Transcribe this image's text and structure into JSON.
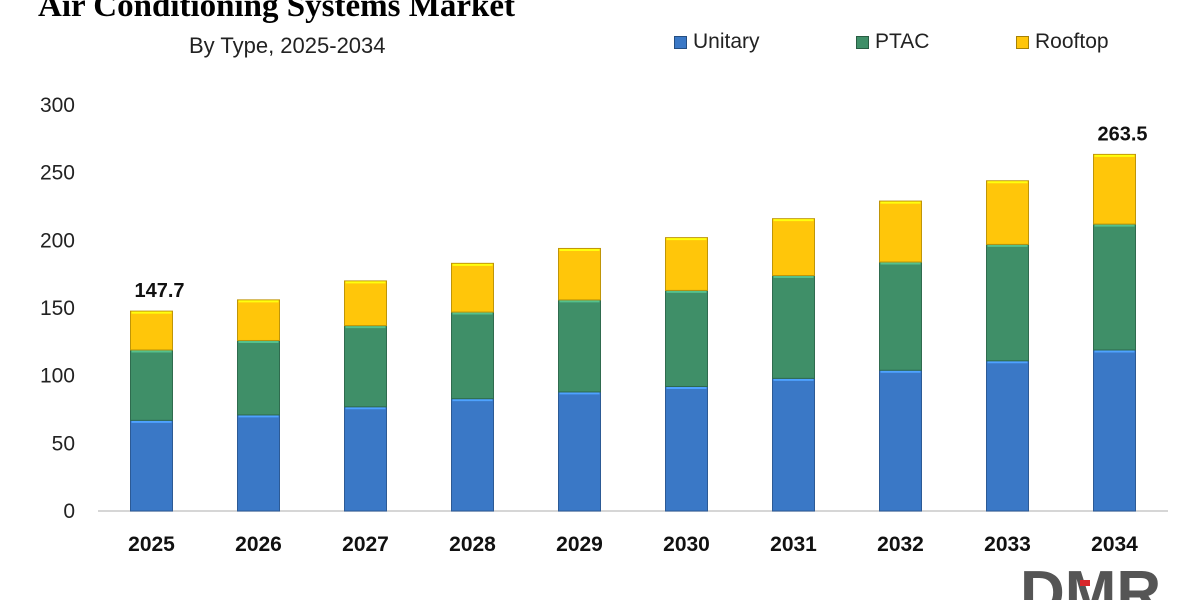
{
  "chart_data": {
    "type": "bar",
    "stacked": true,
    "title": "Air Conditioning Systems Market",
    "subtitle": "By Type, 2025-2034",
    "categories": [
      "2025",
      "2026",
      "2027",
      "2028",
      "2029",
      "2030",
      "2031",
      "2032",
      "2033",
      "2034"
    ],
    "series": [
      {
        "name": "Unitary",
        "color": "#3a78c6",
        "values": [
          67,
          71,
          77,
          83,
          88,
          92,
          98,
          104,
          111,
          119
        ]
      },
      {
        "name": "PTAC",
        "color": "#3f8f68",
        "values": [
          52,
          55,
          60,
          64,
          68,
          71,
          76,
          80,
          86,
          93
        ]
      },
      {
        "name": "Rooftop",
        "color": "#ffc60a",
        "values": [
          28.7,
          30,
          33,
          36,
          38,
          39,
          42,
          45,
          47,
          51.5
        ]
      }
    ],
    "totals": [
      147.7,
      156,
      170,
      183,
      194,
      202,
      216,
      229,
      244,
      263.5
    ],
    "data_labels": [
      {
        "category": "2025",
        "text": "147.7"
      },
      {
        "category": "2034",
        "text": "263.5"
      }
    ],
    "y_ticks": [
      "0",
      "50",
      "100",
      "150",
      "200",
      "250",
      "300"
    ],
    "ylim": [
      0,
      300
    ],
    "xlabel": "",
    "ylabel": "",
    "grid": false,
    "legend_position": "top-right"
  },
  "branding": {
    "logo_icon": "dmr-logo-icon",
    "logo_text": "DMR",
    "logo_color": "#555555"
  }
}
